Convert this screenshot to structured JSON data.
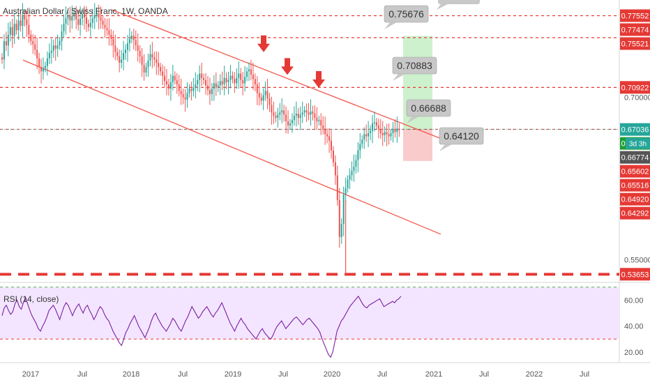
{
  "symbol_title": "Australian Dollar / Swiss Franc, 1W, OANDA",
  "colors": {
    "up": "#26a69a",
    "down": "#ef5350",
    "channel": "#f0584d",
    "level_line": "#e53935",
    "arrow": "#e53935",
    "rsi_line": "#7b1fa2",
    "rsi_fill": "#f3e5ff",
    "last_price_line": "#26a69a",
    "target_zone": "#c8f0c8",
    "stop_zone": "#f9c5c5",
    "callout_bg": "#c8c8c8"
  },
  "chart_data": [
    {
      "type": "candlestick",
      "title": "Australian Dollar / Swiss Franc, 1W, OANDA",
      "x_ticks": [
        "2017",
        "Jul",
        "2018",
        "Jul",
        "2019",
        "Jul",
        "2020",
        "Jul",
        "2021",
        "Jul",
        "2022",
        "Jul"
      ],
      "y_ticks": [
        0.55,
        0.7
      ],
      "y_range": [
        0.5335,
        0.79
      ],
      "timeframe_countdown": "3d 3h",
      "price_labels": [
        {
          "value": 0.77552,
          "text": "0.77552",
          "color": "#e53935",
          "text_color": "#ffffff"
        },
        {
          "value": 0.77474,
          "text": "0.77474",
          "color": "#e53935",
          "text_color": "#ffffff"
        },
        {
          "value": 0.75521,
          "text": "0.75521",
          "color": "#e53935",
          "text_color": "#ffffff"
        },
        {
          "value": 0.70922,
          "text": "0.70922",
          "color": "#e53935",
          "text_color": "#ffffff"
        },
        {
          "value": 0.67036,
          "text": "0.67036",
          "color": "#26a69a",
          "text_color": "#ffffff"
        },
        {
          "value": 0.67015,
          "text": "0.67015",
          "color": "#1e9e33",
          "text_color": "#ffffff"
        },
        {
          "value": 0.66774,
          "text": "0.66774",
          "color": "#555555",
          "text_color": "#ffffff"
        },
        {
          "value": 0.65602,
          "text": "0.65602",
          "color": "#e53935",
          "text_color": "#ffffff"
        },
        {
          "value": 0.65516,
          "text": "0.65516",
          "color": "#e53935",
          "text_color": "#ffffff"
        },
        {
          "value": 0.6492,
          "text": "0.64920",
          "color": "#e53935",
          "text_color": "#ffffff"
        },
        {
          "value": 0.64292,
          "text": "0.64292",
          "color": "#e53935",
          "text_color": "#ffffff"
        },
        {
          "value": 0.53653,
          "text": "0.53653",
          "color": "#e53935",
          "text_color": "#ffffff"
        }
      ],
      "horizontal_levels": [
        0.7755,
        0.7552,
        0.7092,
        0.6705,
        0.5365
      ],
      "last_price": 0.67036,
      "trade_labels": [
        "0.75676",
        "0.70883",
        "0.66688",
        "0.64120"
      ],
      "annotations": {
        "arrow_markers": 3,
        "channel": "descending parallel channel",
        "long_position_box": {
          "entry": 0.6703,
          "targets": [
            0.7088,
            0.7568
          ],
          "stop": 0.6412
        }
      },
      "approx_closes": [
        0.735,
        0.752,
        0.748,
        0.758,
        0.765,
        0.757,
        0.768,
        0.762,
        0.771,
        0.766,
        0.776,
        0.772,
        0.767,
        0.758,
        0.752,
        0.749,
        0.744,
        0.736,
        0.728,
        0.724,
        0.727,
        0.729,
        0.736,
        0.741,
        0.743,
        0.748,
        0.745,
        0.748,
        0.752,
        0.761,
        0.768,
        0.773,
        0.776,
        0.771,
        0.775,
        0.778,
        0.772,
        0.767,
        0.773,
        0.777,
        0.774,
        0.768,
        0.765,
        0.769,
        0.773,
        0.776,
        0.778,
        0.774,
        0.771,
        0.767,
        0.764,
        0.762,
        0.758,
        0.754,
        0.748,
        0.742,
        0.738,
        0.732,
        0.735,
        0.741,
        0.744,
        0.75,
        0.754,
        0.757,
        0.753,
        0.748,
        0.743,
        0.738,
        0.73,
        0.723,
        0.728,
        0.734,
        0.74,
        0.737,
        0.735,
        0.732,
        0.728,
        0.724,
        0.72,
        0.715,
        0.712,
        0.708,
        0.714,
        0.72,
        0.716,
        0.712,
        0.706,
        0.703,
        0.7,
        0.698,
        0.704,
        0.708,
        0.706,
        0.709,
        0.712,
        0.716,
        0.722,
        0.718,
        0.716,
        0.711,
        0.707,
        0.703,
        0.708,
        0.713,
        0.709,
        0.711,
        0.715,
        0.712,
        0.718,
        0.714,
        0.716,
        0.72,
        0.717,
        0.713,
        0.718,
        0.722,
        0.716,
        0.713,
        0.719,
        0.724,
        0.726,
        0.721,
        0.717,
        0.712,
        0.704,
        0.7,
        0.697,
        0.702,
        0.706,
        0.699,
        0.693,
        0.686,
        0.683,
        0.681,
        0.684,
        0.686,
        0.688,
        0.684,
        0.678,
        0.674,
        0.676,
        0.679,
        0.683,
        0.685,
        0.681,
        0.684,
        0.686,
        0.688,
        0.686,
        0.684,
        0.687,
        0.685,
        0.681,
        0.678,
        0.679,
        0.674,
        0.671,
        0.666,
        0.664,
        0.66,
        0.651,
        0.64,
        0.628,
        0.605,
        0.571,
        0.583,
        0.61,
        0.616,
        0.624,
        0.628,
        0.632,
        0.636,
        0.642,
        0.651,
        0.657,
        0.661,
        0.666,
        0.664,
        0.667,
        0.669,
        0.676,
        0.677,
        0.674,
        0.671,
        0.667,
        0.665,
        0.668,
        0.666,
        0.664,
        0.667,
        0.671,
        0.668,
        0.671,
        0.67
      ]
    },
    {
      "type": "line",
      "title": "RSI (14, close)",
      "y_ticks": [
        60,
        40,
        20
      ],
      "y_range": [
        14,
        72
      ],
      "reference_levels": [
        70,
        30
      ],
      "approx_values": [
        48,
        54,
        56,
        52,
        49,
        51,
        57,
        60,
        55,
        53,
        58,
        62,
        57,
        52,
        48,
        45,
        42,
        38,
        36,
        40,
        43,
        47,
        52,
        54,
        56,
        53,
        49,
        45,
        50,
        55,
        58,
        56,
        52,
        48,
        52,
        55,
        57,
        53,
        50,
        54,
        56,
        52,
        49,
        45,
        48,
        52,
        55,
        53,
        49,
        46,
        44,
        40,
        36,
        33,
        30,
        27,
        25,
        30,
        35,
        38,
        42,
        45,
        48,
        44,
        40,
        37,
        34,
        31,
        35,
        39,
        44,
        48,
        50,
        46,
        43,
        40,
        38,
        36,
        39,
        42,
        46,
        44,
        41,
        38,
        36,
        40,
        44,
        47,
        51,
        55,
        52,
        49,
        46,
        48,
        51,
        53,
        55,
        52,
        49,
        47,
        50,
        52,
        55,
        58,
        54,
        50,
        46,
        42,
        39,
        36,
        40,
        43,
        46,
        43,
        41,
        38,
        36,
        34,
        32,
        30,
        33,
        36,
        38,
        35,
        33,
        31,
        30,
        33,
        37,
        40,
        42,
        44,
        41,
        38,
        40,
        42,
        44,
        46,
        47,
        45,
        43,
        41,
        43,
        45,
        46,
        44,
        42,
        40,
        38,
        35,
        30,
        26,
        22,
        18,
        16,
        20,
        28,
        36,
        40,
        44,
        46,
        49,
        52,
        55,
        57,
        59,
        61,
        63,
        60,
        57,
        55,
        54,
        56,
        57,
        58,
        59,
        60,
        61,
        58,
        55,
        56,
        57,
        58,
        59,
        58,
        60,
        61,
        63
      ]
    }
  ]
}
